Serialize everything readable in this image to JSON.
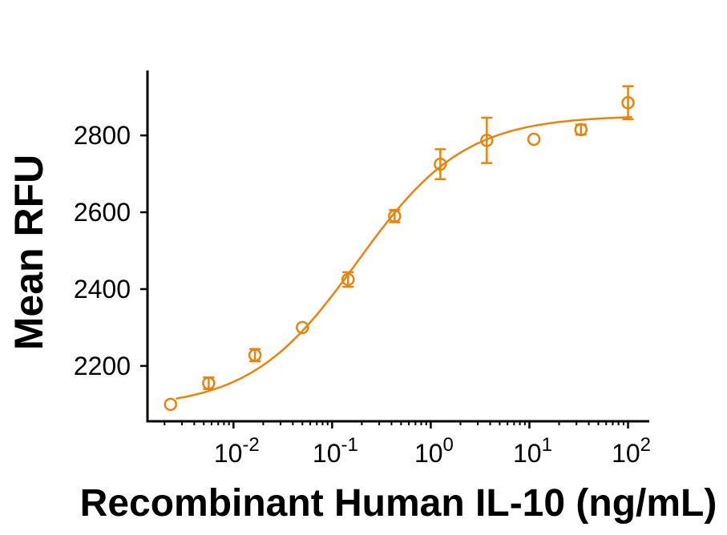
{
  "figure": {
    "background": "#ffffff"
  },
  "chart_data": {
    "type": "scatter",
    "title": "",
    "xlabel": "Recombinant Human IL-10 (ng/mL)",
    "ylabel": "Mean RFU",
    "x_scale": "log10",
    "x_log_range": [
      -2.872,
      2.215
    ],
    "ylim": [
      2056,
      2969
    ],
    "y_ticks": [
      2200,
      2400,
      2600,
      2800
    ],
    "x_tick_base": 10,
    "x_tick_exponents": [
      -2,
      -1,
      0,
      1,
      2
    ],
    "grid": false,
    "legend": "none",
    "series_color": "#E8830D",
    "axis_color": "#000000",
    "marker": "open-circle",
    "points": [
      {
        "x": 0.0023,
        "y": 2100,
        "err": 0
      },
      {
        "x": 0.0056,
        "y": 2155,
        "err": 15
      },
      {
        "x": 0.0165,
        "y": 2228,
        "err": 16
      },
      {
        "x": 0.05,
        "y": 2300,
        "err": 0
      },
      {
        "x": 0.145,
        "y": 2425,
        "err": 19
      },
      {
        "x": 0.43,
        "y": 2590,
        "err": 16
      },
      {
        "x": 1.25,
        "y": 2725,
        "err": 39
      },
      {
        "x": 3.7,
        "y": 2787,
        "err": 59
      },
      {
        "x": 11.1,
        "y": 2790,
        "err": 0
      },
      {
        "x": 33.3,
        "y": 2815,
        "err": 13
      },
      {
        "x": 100,
        "y": 2885,
        "err": 43
      }
    ],
    "fit_curve": {
      "model": "4PL",
      "bottom": 2090,
      "top": 2852,
      "ec50_ng_ml": 0.18,
      "hill": 0.8,
      "x_start": 0.0026,
      "x_end": 110
    }
  }
}
